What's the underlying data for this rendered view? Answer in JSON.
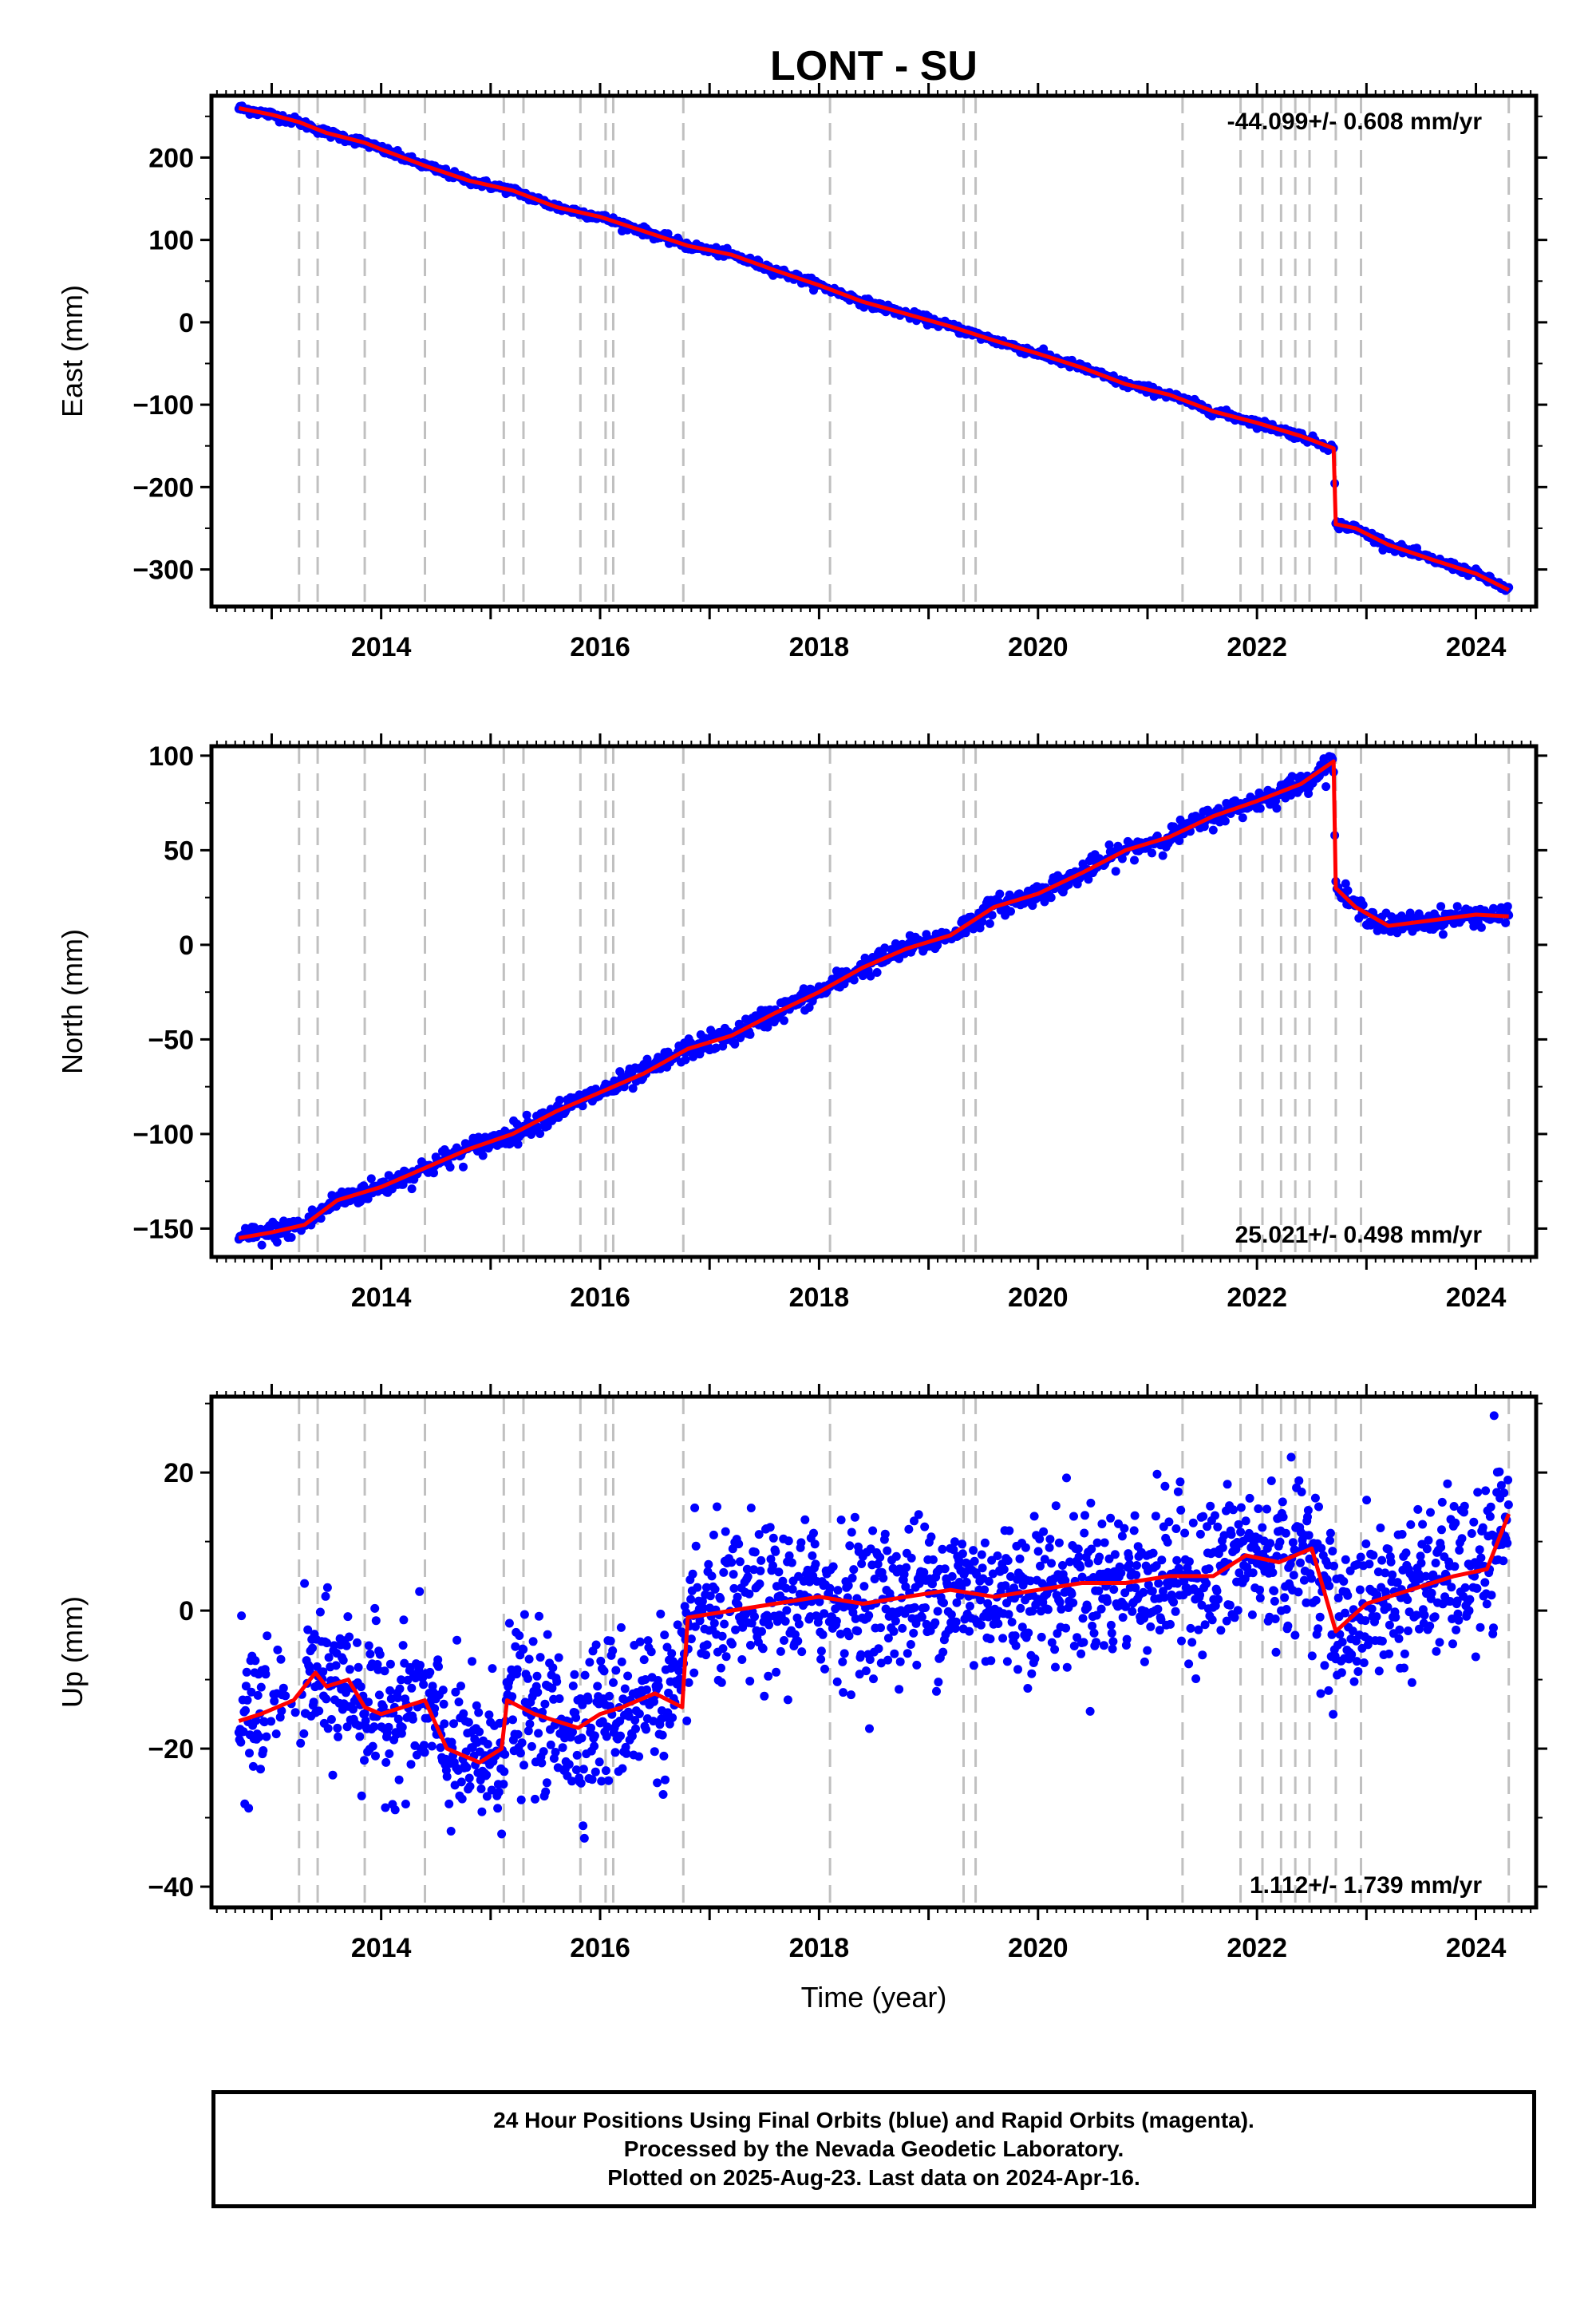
{
  "title": "LONT - SU",
  "xlabel": "Time (year)",
  "x_ticks": [
    2014,
    2016,
    2018,
    2020,
    2022,
    2024
  ],
  "x_range": [
    2012.45,
    2024.55
  ],
  "equipment_change_epochs": [
    2013.25,
    2013.42,
    2013.85,
    2014.4,
    2015.12,
    2015.3,
    2015.82,
    2016.05,
    2016.12,
    2016.76,
    2018.1,
    2019.32,
    2019.43,
    2021.32,
    2021.85,
    2022.05,
    2022.22,
    2022.35,
    2022.48,
    2022.72,
    2022.95,
    2024.3
  ],
  "colors": {
    "points": "#0000ff",
    "model": "#ff0000",
    "change_lines": "#c0c0c0",
    "frame": "#000000"
  },
  "chart_data": [
    {
      "type": "scatter",
      "component": "east",
      "ylabel": "East (mm)",
      "ylim": [
        -345,
        275
      ],
      "y_ticks": [
        -300,
        -200,
        -100,
        0,
        100,
        200
      ],
      "rate_label": "-44.099+/- 0.608 mm/yr",
      "rate_position": "top-right",
      "series": [
        {
          "x": [
            2012.7,
            2013.0,
            2013.25,
            2013.5,
            2013.85,
            2014.0,
            2014.4,
            2014.8,
            2015.2,
            2015.6,
            2016.0,
            2016.3,
            2016.8,
            2017.2,
            2017.6,
            2018.0,
            2018.4,
            2018.8,
            2019.2,
            2019.6,
            2020.0,
            2020.4,
            2020.8,
            2021.2,
            2021.6,
            2022.0,
            2022.4,
            2022.7,
            2022.72,
            2022.9,
            2023.2,
            2023.6,
            2024.0,
            2024.3
          ],
          "y": [
            260,
            252,
            243,
            230,
            218,
            210,
            190,
            172,
            160,
            140,
            128,
            115,
            93,
            82,
            63,
            45,
            25,
            10,
            -5,
            -22,
            -38,
            -55,
            -75,
            -88,
            -108,
            -122,
            -138,
            -153,
            -245,
            -250,
            -270,
            -288,
            -305,
            -325
          ]
        }
      ]
    },
    {
      "type": "scatter",
      "component": "north",
      "ylabel": "North (mm)",
      "ylim": [
        -165,
        105
      ],
      "y_ticks": [
        -150,
        -100,
        -50,
        0,
        50,
        100
      ],
      "rate_label": "25.021+/- 0.498 mm/yr",
      "rate_position": "bottom-right",
      "series": [
        {
          "x": [
            2012.7,
            2013.0,
            2013.3,
            2013.6,
            2014.0,
            2014.4,
            2014.8,
            2015.2,
            2015.6,
            2016.0,
            2016.4,
            2016.8,
            2017.2,
            2017.6,
            2018.0,
            2018.4,
            2018.8,
            2019.2,
            2019.6,
            2020.0,
            2020.4,
            2020.8,
            2021.2,
            2021.6,
            2022.0,
            2022.4,
            2022.7,
            2022.72,
            2022.9,
            2023.2,
            2023.6,
            2024.0,
            2024.3
          ],
          "y": [
            -155,
            -152,
            -148,
            -135,
            -128,
            -118,
            -108,
            -100,
            -88,
            -78,
            -68,
            -55,
            -48,
            -36,
            -25,
            -12,
            -2,
            5,
            20,
            27,
            38,
            50,
            57,
            68,
            76,
            85,
            97,
            30,
            20,
            10,
            13,
            16,
            15
          ]
        }
      ]
    },
    {
      "type": "scatter",
      "component": "up",
      "ylabel": "Up (mm)",
      "ylim": [
        -43,
        31
      ],
      "y_ticks": [
        -40,
        -20,
        0,
        20
      ],
      "rate_label": "1.112+/- 1.739 mm/yr",
      "rate_position": "bottom-right",
      "series": [
        {
          "x": [
            2012.7,
            2012.9,
            2013.2,
            2013.4,
            2013.5,
            2013.7,
            2013.85,
            2014.0,
            2014.4,
            2014.6,
            2014.9,
            2015.1,
            2015.15,
            2015.4,
            2015.6,
            2015.8,
            2016.0,
            2016.2,
            2016.5,
            2016.75,
            2016.8,
            2017.2,
            2017.6,
            2018.0,
            2018.4,
            2018.8,
            2019.2,
            2019.6,
            2020.0,
            2020.4,
            2020.8,
            2021.2,
            2021.6,
            2021.9,
            2022.2,
            2022.5,
            2022.72,
            2023.0,
            2023.4,
            2023.8,
            2024.1,
            2024.3
          ],
          "y": [
            -16,
            -15,
            -13,
            -9,
            -11,
            -10,
            -14,
            -15,
            -13,
            -20,
            -22,
            -20,
            -13,
            -15,
            -16,
            -17,
            -15,
            -14,
            -12,
            -14,
            -1,
            0,
            1,
            2,
            1,
            2,
            3,
            2,
            3,
            4,
            4,
            5,
            5,
            8,
            7,
            9,
            -3,
            1,
            3,
            5,
            6,
            14
          ]
        }
      ]
    }
  ],
  "footer": {
    "line1": "24 Hour Positions Using Final Orbits (blue) and Rapid Orbits (magenta).",
    "line2": "Processed by the Nevada Geodetic Laboratory.",
    "line3": "Plotted on 2025-Aug-23. Last data on 2024-Apr-16."
  }
}
